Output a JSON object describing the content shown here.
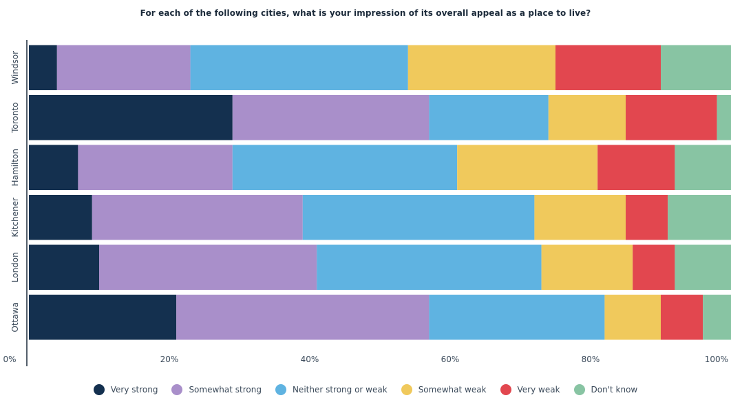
{
  "chart_data": {
    "type": "bar",
    "orientation": "horizontal",
    "stacked": true,
    "title": "For each of the following cities, what is your impression of its overall appeal as a place to live?",
    "xlabel": "",
    "ylabel": "",
    "xlim": [
      0,
      100
    ],
    "x_ticks": [
      "0%",
      "20%",
      "40%",
      "60%",
      "80%",
      "100%"
    ],
    "x_tick_values": [
      0,
      20,
      40,
      60,
      80,
      100
    ],
    "grid": false,
    "legend_position": "bottom",
    "categories": [
      "Windsor",
      "Toronto",
      "Hamilton",
      "Kitchener",
      "London",
      "Ottawa"
    ],
    "series": [
      {
        "name": "Very strong",
        "color": "#14304f",
        "values": [
          4,
          29,
          7,
          9,
          10,
          21
        ]
      },
      {
        "name": "Somewhat strong",
        "color": "#a98fca",
        "values": [
          19,
          28,
          22,
          30,
          31,
          36
        ]
      },
      {
        "name": "Neither strong or weak",
        "color": "#5fb3e1",
        "values": [
          31,
          17,
          32,
          33,
          32,
          25
        ]
      },
      {
        "name": "Somewhat weak",
        "color": "#f0c95c",
        "values": [
          21,
          11,
          20,
          13,
          13,
          8
        ]
      },
      {
        "name": "Very weak",
        "color": "#e2474f",
        "values": [
          15,
          13,
          11,
          6,
          6,
          6
        ]
      },
      {
        "name": "Don't know",
        "color": "#88c4a3",
        "values": [
          10,
          2,
          8,
          9,
          8,
          4
        ]
      }
    ]
  }
}
